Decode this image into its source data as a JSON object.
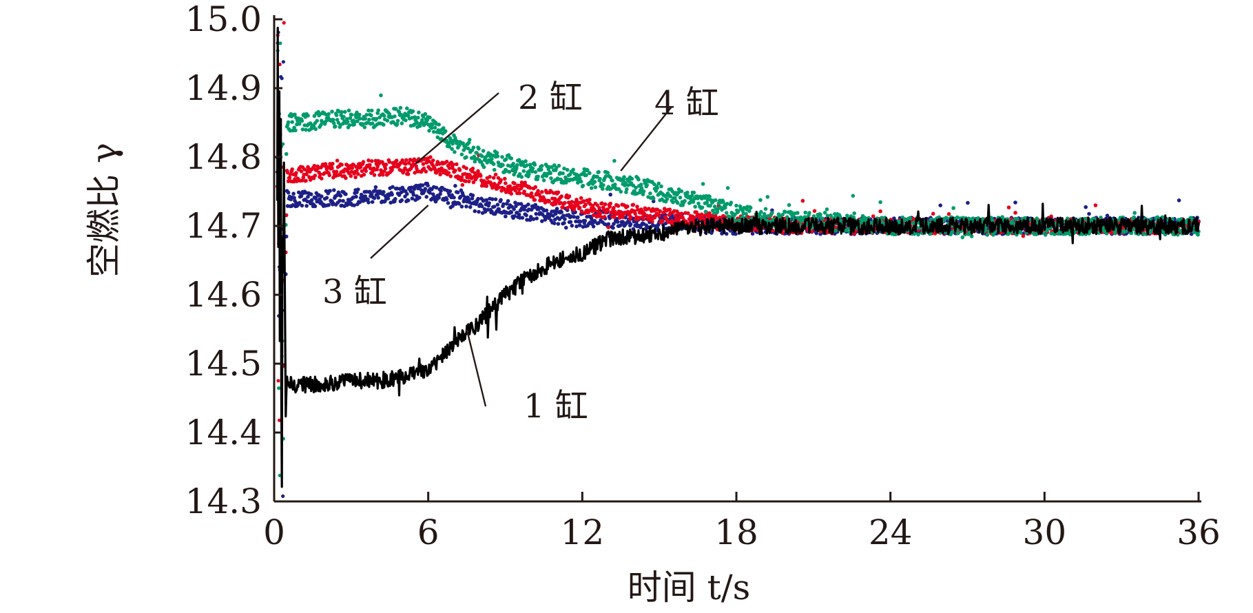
{
  "chart_data": {
    "type": "line",
    "xlabel": "时间 t/s",
    "ylabel": "空燃比 γ",
    "xlim": [
      0,
      36
    ],
    "ylim": [
      14.3,
      15.0
    ],
    "xticks": [
      0,
      6,
      12,
      18,
      24,
      30,
      36
    ],
    "xtick_labels": [
      "0",
      "6",
      "12",
      "18",
      "24",
      "30",
      "36"
    ],
    "yticks": [
      14.3,
      14.4,
      14.5,
      14.6,
      14.7,
      14.8,
      14.9,
      15.0
    ],
    "ytick_labels": [
      "14.3",
      "14.4",
      "14.5",
      "14.6",
      "14.7",
      "14.8",
      "14.9",
      "15.0"
    ],
    "grid": false,
    "legend": "none",
    "series": [
      {
        "name": "1 缸",
        "color": "#000000",
        "style": "line",
        "x": [
          0.3,
          0.5,
          1,
          2,
          3,
          4,
          5,
          6,
          6.5,
          7,
          8,
          9,
          10,
          11,
          12,
          13,
          14,
          15,
          16,
          17,
          18,
          20,
          22,
          24,
          26,
          28,
          30,
          32,
          34,
          36
        ],
        "y": [
          14.3,
          14.47,
          14.47,
          14.47,
          14.475,
          14.475,
          14.48,
          14.49,
          14.51,
          14.53,
          14.56,
          14.6,
          14.63,
          14.65,
          14.66,
          14.68,
          14.685,
          14.69,
          14.695,
          14.7,
          14.7,
          14.7,
          14.7,
          14.7,
          14.7,
          14.7,
          14.7,
          14.7,
          14.7,
          14.7
        ],
        "noise": 0.012
      },
      {
        "name": "2 缸",
        "color": "#e6001c",
        "style": "dots",
        "x": [
          0.3,
          0.5,
          1,
          2,
          3,
          4,
          5,
          6,
          7,
          8,
          9,
          10,
          11,
          12,
          13,
          14,
          15,
          16,
          17,
          18,
          20,
          22,
          24,
          26,
          28,
          30,
          32,
          34,
          36
        ],
        "y": [
          14.3,
          14.77,
          14.775,
          14.78,
          14.78,
          14.785,
          14.785,
          14.79,
          14.78,
          14.77,
          14.76,
          14.75,
          14.74,
          14.73,
          14.72,
          14.72,
          14.715,
          14.71,
          14.71,
          14.705,
          14.7,
          14.7,
          14.7,
          14.7,
          14.7,
          14.7,
          14.7,
          14.7,
          14.7
        ],
        "noise": 0.011
      },
      {
        "name": "3 缸",
        "color": "#1d2087",
        "style": "dots",
        "x": [
          0.3,
          0.5,
          1,
          2,
          3,
          4,
          5,
          6,
          7,
          8,
          9,
          10,
          11,
          12,
          13,
          14,
          15,
          16,
          17,
          18,
          20,
          22,
          24,
          26,
          28,
          30,
          32,
          34,
          36
        ],
        "y": [
          14.3,
          14.74,
          14.74,
          14.74,
          14.74,
          14.745,
          14.745,
          14.75,
          14.74,
          14.73,
          14.725,
          14.72,
          14.715,
          14.71,
          14.71,
          14.705,
          14.705,
          14.705,
          14.7,
          14.7,
          14.7,
          14.7,
          14.7,
          14.7,
          14.7,
          14.7,
          14.7,
          14.7,
          14.7
        ],
        "noise": 0.012
      },
      {
        "name": "4 缸",
        "color": "#009b6b",
        "style": "dots",
        "x": [
          0.3,
          0.5,
          1,
          2,
          3,
          4,
          5,
          6,
          7,
          8,
          9,
          10,
          11,
          12,
          13,
          14,
          15,
          16,
          17,
          18,
          20,
          22,
          24,
          26,
          28,
          30,
          32,
          34,
          36
        ],
        "y": [
          14.3,
          14.85,
          14.85,
          14.855,
          14.855,
          14.855,
          14.86,
          14.85,
          14.82,
          14.8,
          14.79,
          14.78,
          14.775,
          14.77,
          14.765,
          14.76,
          14.75,
          14.74,
          14.73,
          14.72,
          14.71,
          14.705,
          14.7,
          14.7,
          14.7,
          14.7,
          14.7,
          14.7,
          14.7
        ],
        "noise": 0.013
      }
    ],
    "annotations": [
      {
        "text": "1 缸",
        "target": [
          7.5,
          14.55
        ]
      },
      {
        "text": "2 缸",
        "target": [
          5.5,
          14.79
        ]
      },
      {
        "text": "3 缸",
        "target": [
          6.0,
          14.73
        ]
      },
      {
        "text": "4 缸",
        "target": [
          13.5,
          14.78
        ]
      }
    ]
  }
}
